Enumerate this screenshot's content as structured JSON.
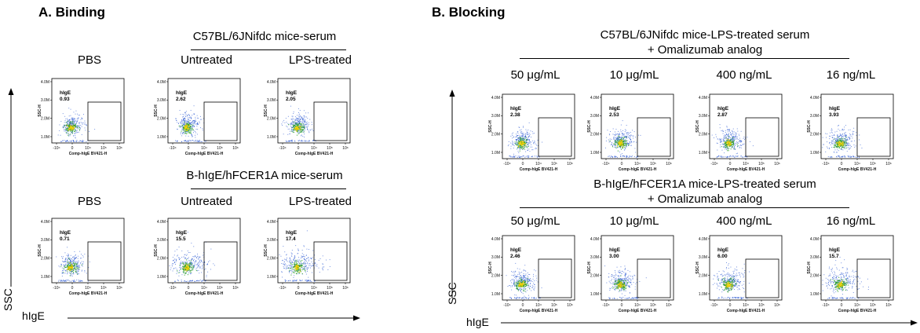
{
  "panels": [
    {
      "title": "A. Binding",
      "axis_y": "SSC",
      "axis_x": "hIgE",
      "groups": [
        {
          "title": "C57BL/6JNifdc mice-serum",
          "subtitle": "",
          "plots": [
            {
              "label": "PBS",
              "gate_name": "hIgE",
              "gate_value": "0.93"
            },
            {
              "label": "Untreated",
              "gate_name": "hIgE",
              "gate_value": "2.62"
            },
            {
              "label": "LPS-treated",
              "gate_name": "hIgE",
              "gate_value": "2.05"
            }
          ]
        },
        {
          "title": "B-hIgE/hFCER1A mice-serum",
          "subtitle": "",
          "plots": [
            {
              "label": "PBS",
              "gate_name": "hIgE",
              "gate_value": "0.71"
            },
            {
              "label": "Untreated",
              "gate_name": "hIgE",
              "gate_value": "15.5"
            },
            {
              "label": "LPS-treated",
              "gate_name": "hIgE",
              "gate_value": "17.4"
            }
          ]
        }
      ]
    },
    {
      "title": "B. Blocking",
      "axis_y": "SSC",
      "axis_x": "hIgE",
      "groups": [
        {
          "title": "C57BL/6JNifdc mice-LPS-treated serum",
          "subtitle": "+ Omalizumab analog",
          "plots": [
            {
              "label": "50 μg/mL",
              "gate_name": "hIgE",
              "gate_value": "2.38"
            },
            {
              "label": "10 μg/mL",
              "gate_name": "hIgE",
              "gate_value": "2.53"
            },
            {
              "label": "400 ng/mL",
              "gate_name": "hIgE",
              "gate_value": "2.87"
            },
            {
              "label": "16 ng/mL",
              "gate_name": "hIgE",
              "gate_value": "3.93"
            }
          ]
        },
        {
          "title": "B-hIgE/hFCER1A mice-LPS-treated serum",
          "subtitle": "+ Omalizumab analog",
          "plots": [
            {
              "label": "50 μg/mL",
              "gate_name": "hIgE",
              "gate_value": "2.46"
            },
            {
              "label": "10 μg/mL",
              "gate_name": "hIgE",
              "gate_value": "3.00"
            },
            {
              "label": "400 ng/mL",
              "gate_name": "hIgE",
              "gate_value": "6.00"
            },
            {
              "label": "16 ng/mL",
              "gate_name": "hIgE",
              "gate_value": "15.7"
            }
          ]
        }
      ]
    }
  ],
  "plot_axes": {
    "y_title": "SSC-H",
    "y_ticks": [
      "4.0M",
      "3.0M",
      "2.0M",
      "1.0M"
    ],
    "x_title": "Comp-hIgE BV421-H",
    "x_ticks": [
      "-10⁴",
      "0",
      "10⁴",
      "10⁵",
      "10⁶"
    ]
  },
  "colors": {
    "density_core": "#f5d000",
    "density_mid": "#2ca02c",
    "density_outer": "#1f4fcf",
    "axis": "#000000"
  }
}
